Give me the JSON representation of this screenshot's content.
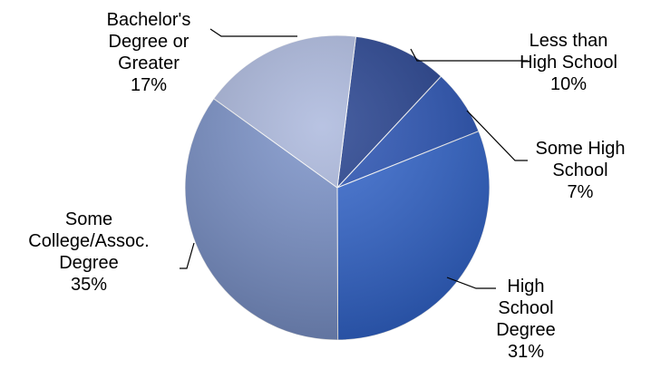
{
  "chart_data": {
    "type": "pie",
    "title": "",
    "legend": "none",
    "slices": [
      {
        "label": "Less than High School",
        "label_lines": [
          "Less than",
          "High School"
        ],
        "value_label": "10%",
        "value": 10,
        "color": "#1f3c8c"
      },
      {
        "label": "Some High School",
        "label_lines": [
          "Some High",
          "School"
        ],
        "value_label": "7%",
        "value": 7,
        "color": "#2550b4"
      },
      {
        "label": "High School Degree",
        "label_lines": [
          "High",
          "School",
          "Degree"
        ],
        "value_label": "31%",
        "value": 31,
        "color": "#2f63cc"
      },
      {
        "label": "Some College/Assoc. Degree",
        "label_lines": [
          "Some",
          "College/Assoc.",
          "Degree"
        ],
        "value_label": "35%",
        "value": 35,
        "color": "#7890c8"
      },
      {
        "label": "Bachelor's Degree or Greater",
        "label_lines": [
          "Bachelor's",
          "Degree or",
          "Greater"
        ],
        "value_label": "17%",
        "value": 17,
        "color": "#a9b6dc"
      }
    ]
  }
}
